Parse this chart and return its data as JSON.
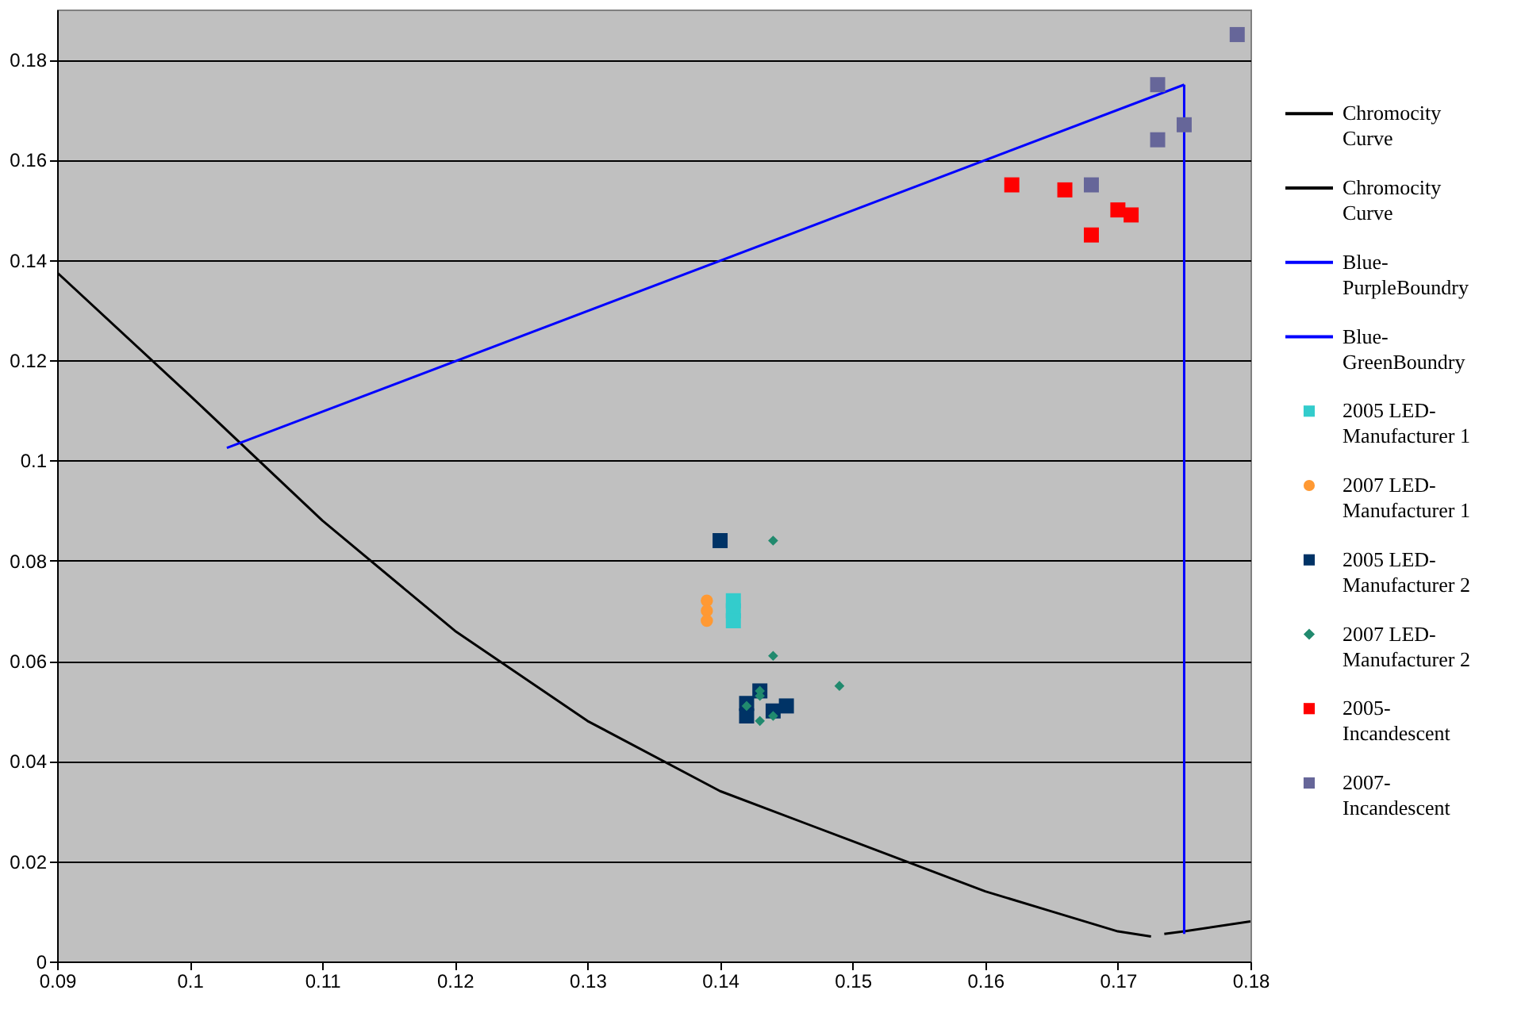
{
  "chart_data": {
    "type": "scatter",
    "xlim": [
      0.09,
      0.18
    ],
    "ylim": [
      0,
      0.19
    ],
    "xticks": [
      0.09,
      {
        "value": 0.1,
        "label": "0.1"
      },
      0.11,
      0.12,
      0.13,
      0.14,
      0.15,
      0.16,
      0.17,
      0.18
    ],
    "yticks": [
      {
        "value": 0,
        "label": "0"
      },
      0.02,
      0.04,
      0.06,
      0.08,
      {
        "value": 0.1,
        "label": "0.1"
      },
      0.12,
      0.14,
      0.16,
      0.18
    ],
    "grid": "y",
    "legend": "right",
    "series": [
      {
        "name": "Chromocity Curve",
        "type": "line",
        "marker": "none",
        "color": "#000000",
        "x": [
          0.09,
          0.1,
          0.11,
          0.12,
          0.13,
          0.14,
          0.15,
          0.16,
          0.165,
          0.17,
          0.1725
        ],
        "values": [
          0.1375,
          0.113,
          0.088,
          0.066,
          0.048,
          0.034,
          0.024,
          0.014,
          0.01,
          0.006,
          0.005
        ]
      },
      {
        "name": "Chromocity Curve",
        "type": "line",
        "marker": "none",
        "color": "#000000",
        "x": [
          0.1735,
          0.175,
          0.18
        ],
        "values": [
          0.0055,
          0.006,
          0.008
        ]
      },
      {
        "name": "Blue-PurpleBoundry",
        "type": "line",
        "marker": "none",
        "color": "#0000ff",
        "x": [
          0.1028,
          0.175
        ],
        "values": [
          0.1025,
          0.175
        ]
      },
      {
        "name": "Blue-GreenBoundry",
        "type": "line",
        "marker": "none",
        "color": "#0000ff",
        "x": [
          0.175,
          0.175
        ],
        "values": [
          0.175,
          0.0055
        ]
      },
      {
        "name": "2005 LED-Manufacturer 1",
        "marker": "square",
        "color": "#33cccc",
        "x": [
          0.141,
          0.141,
          0.141
        ],
        "values": [
          0.072,
          0.07,
          0.068
        ]
      },
      {
        "name": "2007 LED-Manufacturer 1",
        "marker": "circle",
        "color": "#ff9933",
        "x": [
          0.139,
          0.139,
          0.139
        ],
        "values": [
          0.072,
          0.07,
          0.068
        ]
      },
      {
        "name": "2005 LED-Manufacturer 2",
        "marker": "square",
        "color": "#003366",
        "x": [
          0.14,
          0.142,
          0.142,
          0.143,
          0.144,
          0.145
        ],
        "values": [
          0.084,
          0.0515,
          0.049,
          0.054,
          0.05,
          0.051
        ]
      },
      {
        "name": "2007 LED-Manufacturer 2",
        "marker": "diamond",
        "color": "#218a6e",
        "x": [
          0.144,
          0.144,
          0.149,
          0.142,
          0.143,
          0.143,
          0.143,
          0.144
        ],
        "values": [
          0.084,
          0.061,
          0.055,
          0.051,
          0.054,
          0.053,
          0.048,
          0.049
        ]
      },
      {
        "name": "2005-Incandescent",
        "marker": "square",
        "color": "#ff0000",
        "x": [
          0.162,
          0.166,
          0.168,
          0.17,
          0.171
        ],
        "values": [
          0.155,
          0.154,
          0.145,
          0.15,
          0.149
        ]
      },
      {
        "name": "2007-Incandescent",
        "marker": "square",
        "color": "#666699",
        "x": [
          0.179,
          0.173,
          0.175,
          0.173,
          0.168
        ],
        "values": [
          0.185,
          0.175,
          0.167,
          0.164,
          0.155
        ]
      }
    ]
  }
}
